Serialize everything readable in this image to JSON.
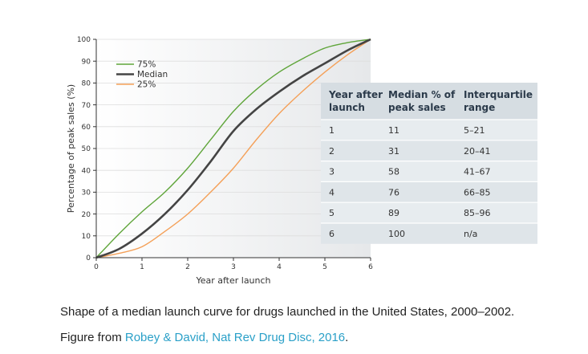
{
  "chart_data": {
    "type": "line",
    "xlabel": "Year after launch",
    "ylabel": "Percentage of peak sales (%)",
    "xlim": [
      0,
      6
    ],
    "ylim": [
      0,
      100
    ],
    "x_ticks": [
      "0",
      "1",
      "2",
      "3",
      "4",
      "5",
      "6"
    ],
    "y_ticks": [
      "0",
      "10",
      "20",
      "30",
      "40",
      "50",
      "60",
      "70",
      "80",
      "90",
      "100"
    ],
    "legend_position": "top-left",
    "series": [
      {
        "name": "75%",
        "color": "#5fa53a",
        "x": [
          0,
          0.5,
          1,
          1.5,
          2,
          2.5,
          3,
          3.5,
          4,
          4.5,
          5,
          5.5,
          6
        ],
        "y": [
          0,
          11,
          21,
          30,
          41,
          54,
          67,
          77,
          85,
          91,
          96,
          98.5,
          100
        ]
      },
      {
        "name": "Median",
        "color": "#444444",
        "x": [
          0,
          0.5,
          1,
          1.5,
          2,
          2.5,
          3,
          3.5,
          4,
          4.5,
          5,
          5.5,
          6
        ],
        "y": [
          0,
          4,
          11,
          20,
          31,
          44,
          58,
          68,
          76,
          83,
          89,
          95,
          100
        ]
      },
      {
        "name": "25%",
        "color": "#f4a058",
        "x": [
          0,
          0.5,
          1,
          1.5,
          2,
          2.5,
          3,
          3.5,
          4,
          4.5,
          5,
          5.5,
          6
        ],
        "y": [
          0,
          2,
          5,
          12,
          20,
          30,
          41,
          54,
          66,
          76,
          85,
          93,
          100
        ]
      }
    ],
    "table": {
      "headers": [
        [
          "Year after",
          "launch"
        ],
        [
          "Median % of",
          "peak sales"
        ],
        [
          "Interquartile",
          "range"
        ]
      ],
      "rows": [
        [
          "1",
          "11",
          "5–21"
        ],
        [
          "2",
          "31",
          "20–41"
        ],
        [
          "3",
          "58",
          "41–67"
        ],
        [
          "4",
          "76",
          "66–85"
        ],
        [
          "5",
          "89",
          "85–96"
        ],
        [
          "6",
          "100",
          "n/a"
        ]
      ]
    }
  },
  "caption": {
    "line1": "Shape of a median launch curve for drugs launched in the United States, 2000–2002.",
    "line2_prefix": "Figure from ",
    "line2_link": "Robey & David, Nat Rev Drug Disc, 2016",
    "line2_suffix": "."
  },
  "colors": {
    "grid": "#dddddd",
    "plot_bg_start": "#ffffff",
    "plot_bg_end": "#e6e8ea",
    "table_header_bg": "#d6dde2",
    "table_row_bg": "#e7ecef",
    "table_row_alt": "#dfe5e9",
    "link": "#2aa0c8"
  }
}
